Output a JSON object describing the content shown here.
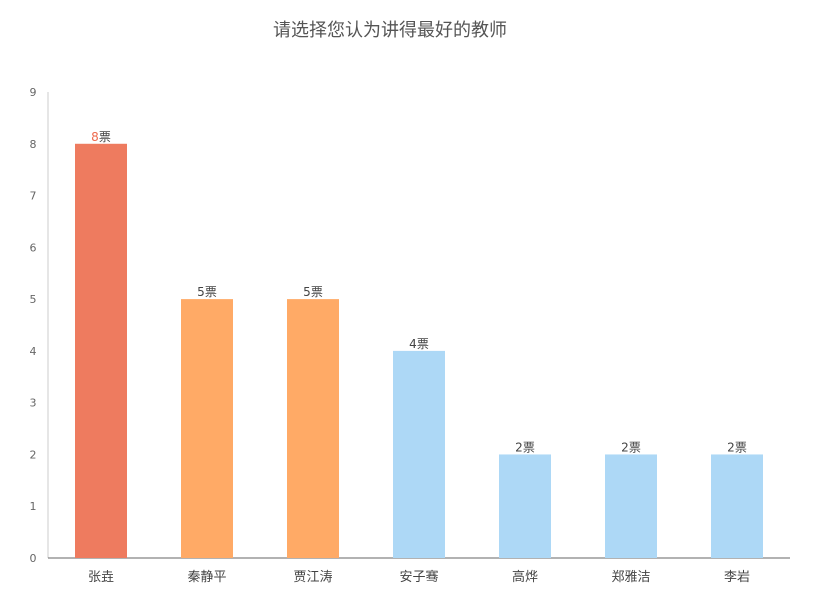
{
  "chart_data": {
    "type": "bar",
    "title": "请选择您认为讲得最好的教师",
    "xlabel": "",
    "ylabel": "",
    "categories": [
      "张垚",
      "秦静平",
      "贾江涛",
      "安子骞",
      "高烨",
      "郑雅洁",
      "李岩"
    ],
    "values": [
      8,
      5,
      5,
      4,
      2,
      2,
      2
    ],
    "value_suffix": "票",
    "ylim": [
      0,
      9
    ],
    "yticks": [
      "0",
      "1",
      "2",
      "3",
      "4",
      "5",
      "6",
      "7",
      "8",
      "9"
    ],
    "grid": false,
    "legend": "none",
    "colors": [
      "#ee7b5f",
      "#ffaa66",
      "#ffaa66",
      "#add8f6",
      "#add8f6",
      "#add8f6",
      "#add8f6"
    ],
    "top_value_color": "#ee6a4d"
  }
}
